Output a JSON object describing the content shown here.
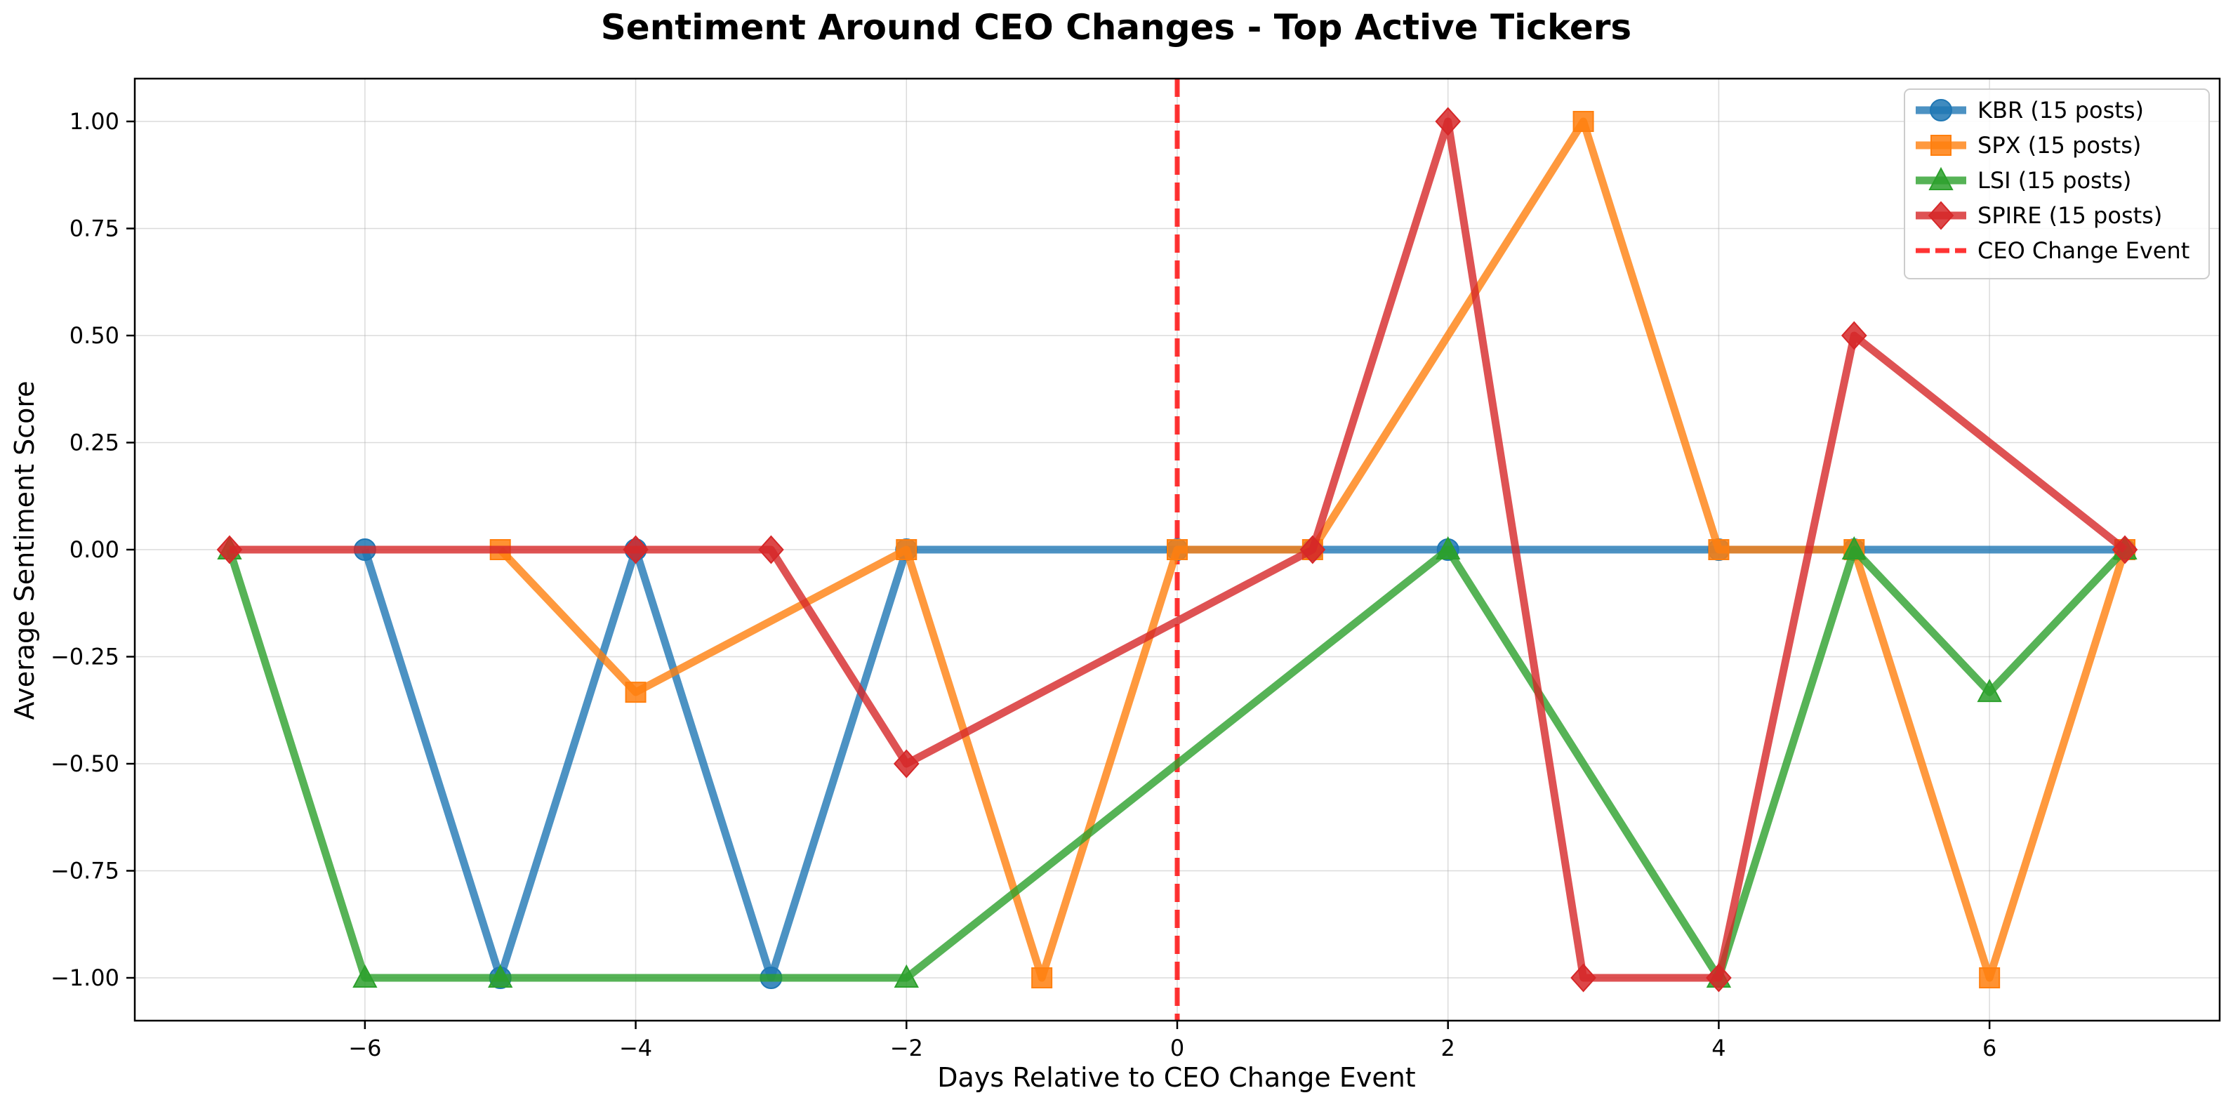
{
  "chart_data": {
    "type": "line",
    "title": "Sentiment Around CEO Changes - Top Active Tickers",
    "xlabel": "Days Relative to CEO Change Event",
    "ylabel": "Average Sentiment Score",
    "xlim": [
      -7.7,
      7.7
    ],
    "ylim": [
      -1.1,
      1.1
    ],
    "xticks": [
      -6,
      -4,
      -2,
      0,
      2,
      4,
      6
    ],
    "xtick_labels": [
      "−6",
      "−4",
      "−2",
      "0",
      "2",
      "4",
      "6"
    ],
    "yticks": [
      1.0,
      0.75,
      0.5,
      0.25,
      0.0,
      -0.25,
      -0.5,
      -0.75,
      -1.0
    ],
    "ytick_labels": [
      "1.00",
      "0.75",
      "0.50",
      "0.25",
      "0.00",
      "−0.25",
      "−0.50",
      "−0.75",
      "−1.00"
    ],
    "grid": true,
    "legend_position": "top-right",
    "series": [
      {
        "name": "KBR (15 posts)",
        "color": "#1f77b4",
        "marker": "circle",
        "x": [
          -6,
          -5,
          -4,
          -3,
          -2,
          0,
          1,
          2,
          4,
          5,
          7
        ],
        "y": [
          0,
          -1,
          0,
          -1,
          0,
          0,
          0,
          0,
          0,
          0,
          0
        ]
      },
      {
        "name": "SPX (15 posts)",
        "color": "#ff7f0e",
        "marker": "square",
        "x": [
          -5,
          -4,
          -2,
          -1,
          0,
          1,
          3,
          4,
          5,
          6,
          7
        ],
        "y": [
          0,
          -0.333,
          0,
          -1,
          0,
          0,
          1,
          0,
          0,
          -1,
          0
        ]
      },
      {
        "name": "LSI (15 posts)",
        "color": "#2ca02c",
        "marker": "triangle",
        "x": [
          -7,
          -6,
          -5,
          -2,
          2,
          4,
          5,
          6,
          7
        ],
        "y": [
          0,
          -1,
          -1,
          -1,
          0,
          -1,
          0,
          -0.333,
          0
        ]
      },
      {
        "name": "SPIRE (15 posts)",
        "color": "#d62728",
        "marker": "diamond",
        "x": [
          -7,
          -4,
          -3,
          -2,
          1,
          2,
          3,
          4,
          5,
          7
        ],
        "y": [
          0,
          0,
          0,
          -0.5,
          0,
          1,
          -1,
          -1,
          0.5,
          0
        ]
      }
    ],
    "event_line": {
      "x": 0,
      "name": "CEO Change Event",
      "color": "#ff0000",
      "style": "dashed"
    }
  }
}
